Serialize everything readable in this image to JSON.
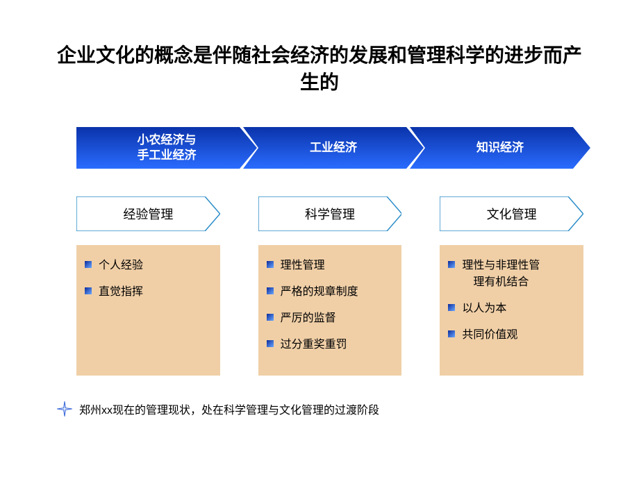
{
  "title": "企业文化的概念是伴随社会经济的发展和管理科学的进步而产生的",
  "colors": {
    "arrow_gradient_start": "#0a33aa",
    "arrow_gradient_end": "#2a6cff",
    "outline_border": "#2a8cc8",
    "box_bg": "#f0cfa7",
    "bullet_gradient_start": "#0a2a9a",
    "bullet_gradient_end": "#6aa8ff",
    "star_stroke": "#3a6ad8",
    "text": "#000000",
    "bg": "#ffffff"
  },
  "arrows": [
    {
      "label": "小农经济与\n手工业经济"
    },
    {
      "label": "工业经济"
    },
    {
      "label": "知识经济"
    }
  ],
  "outlines": [
    {
      "label": "经验管理"
    },
    {
      "label": "科学管理"
    },
    {
      "label": "文化管理"
    }
  ],
  "columns": [
    {
      "items": [
        "个人经验",
        "直觉指挥"
      ]
    },
    {
      "items": [
        "理性管理",
        "严格的规章制度",
        "严厉的监督",
        "过分重奖重罚"
      ]
    },
    {
      "items": [
        "理性与非理性管\n　理有机结合",
        "以人为本",
        "共同价值观"
      ]
    }
  ],
  "footer": "郑州xx现在的管理现状，处在科学管理与文化管理的过渡阶段"
}
